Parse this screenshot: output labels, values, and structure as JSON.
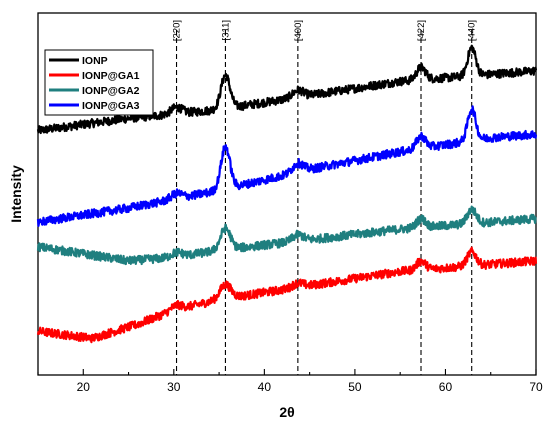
{
  "chart_data": {
    "type": "line",
    "title": "",
    "xlabel": "2θ",
    "ylabel": "Intensity",
    "xlim": [
      15,
      70
    ],
    "ylim": [
      0,
      100
    ],
    "x_ticks": [
      20,
      30,
      40,
      50,
      60,
      70
    ],
    "y_ticks": [],
    "grid": false,
    "legend": {
      "placement": "top-left",
      "entries": [
        "IONP",
        "IONP@GA1",
        "IONP@GA2",
        "IONP@GA3"
      ]
    },
    "reference_lines": [
      {
        "x": 30.3,
        "label": "[220]"
      },
      {
        "x": 35.7,
        "label": "[311]"
      },
      {
        "x": 43.7,
        "label": "[400]"
      },
      {
        "x": 57.3,
        "label": "[422]"
      },
      {
        "x": 62.9,
        "label": "[440]"
      }
    ],
    "series": [
      {
        "name": "IONP",
        "color": "#000000",
        "baseline": [
          [
            15,
            68
          ],
          [
            25,
            71.5
          ],
          [
            35,
            74
          ],
          [
            45,
            78
          ],
          [
            55,
            82
          ],
          [
            65,
            84
          ],
          [
            70,
            85
          ]
        ],
        "peaks": [
          [
            30.3,
            1.8,
            0.6
          ],
          [
            35.7,
            9.5,
            0.5
          ],
          [
            43.7,
            2.0,
            0.6
          ],
          [
            57.3,
            3.5,
            0.5
          ],
          [
            62.9,
            8.0,
            0.45
          ]
        ]
      },
      {
        "name": "IONP@GA1",
        "color": "#ff0000",
        "baseline": [
          [
            15,
            11
          ],
          [
            21,
            9
          ],
          [
            26,
            13
          ],
          [
            30,
            17
          ],
          [
            35,
            20
          ],
          [
            45,
            24
          ],
          [
            55,
            28
          ],
          [
            65,
            30
          ],
          [
            70,
            31
          ]
        ],
        "peaks": [
          [
            30.3,
            1.2,
            0.6
          ],
          [
            35.7,
            4.0,
            0.6
          ],
          [
            43.7,
            1.2,
            0.6
          ],
          [
            57.3,
            2.5,
            0.5
          ],
          [
            62.9,
            4.0,
            0.5
          ]
        ]
      },
      {
        "name": "IONP@GA2",
        "color": "#1f7f7f",
        "baseline": [
          [
            15,
            35
          ],
          [
            25,
            31
          ],
          [
            30,
            32
          ],
          [
            35,
            34
          ],
          [
            45,
            37
          ],
          [
            55,
            40
          ],
          [
            65,
            42
          ],
          [
            70,
            43
          ]
        ],
        "peaks": [
          [
            30.3,
            1.3,
            0.6
          ],
          [
            35.7,
            6.0,
            0.55
          ],
          [
            43.7,
            1.8,
            0.6
          ],
          [
            57.3,
            2.5,
            0.5
          ],
          [
            62.9,
            4.0,
            0.5
          ]
        ]
      },
      {
        "name": "IONP@GA3",
        "color": "#0000ff",
        "baseline": [
          [
            15,
            42
          ],
          [
            25,
            46
          ],
          [
            35,
            51
          ],
          [
            45,
            57
          ],
          [
            55,
            62
          ],
          [
            65,
            66
          ],
          [
            70,
            67
          ]
        ],
        "peaks": [
          [
            30.3,
            1.5,
            0.6
          ],
          [
            35.7,
            12.0,
            0.5
          ],
          [
            43.7,
            2.5,
            0.6
          ],
          [
            57.3,
            3.5,
            0.5
          ],
          [
            62.9,
            9.0,
            0.45
          ]
        ]
      }
    ]
  }
}
